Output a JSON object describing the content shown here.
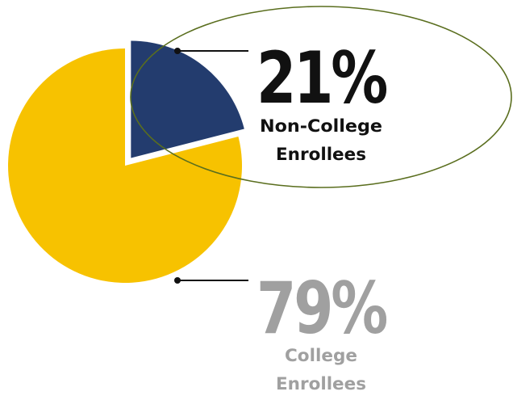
{
  "top_caption": "",
  "chart_data": {
    "type": "pie",
    "title": "",
    "slices": [
      {
        "label": "Non-College Enrollees",
        "label_lines": [
          "Non-College",
          "Enrollees"
        ],
        "value": 21,
        "display": "21%",
        "color": "#233c6e",
        "text_color": "#111111",
        "exploded": true,
        "highlighted": true
      },
      {
        "label": "College Enrollees",
        "label_lines": [
          "College",
          "Enrollees"
        ],
        "value": 79,
        "display": "79%",
        "color": "#f7c200",
        "text_color": "#a0a0a0",
        "exploded": false,
        "highlighted": false
      }
    ],
    "highlight_color": "#5a6e1e",
    "leader_color": "#111111"
  }
}
